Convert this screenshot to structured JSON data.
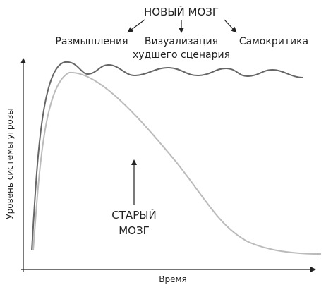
{
  "title": "НОВЫЙ МОЗГ",
  "labels": [
    "Размышления",
    "Визуализация",
    "худшего сценария",
    "Самокритика"
  ],
  "old_brain": [
    "СТАРЫЙ",
    "МОЗГ"
  ],
  "y_axis_label": "Уровень системы угрозы",
  "x_axis_label": "Время"
}
